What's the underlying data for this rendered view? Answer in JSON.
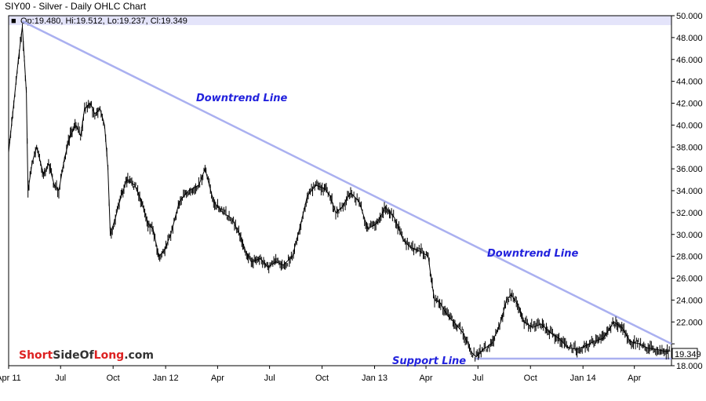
{
  "chart_data": {
    "type": "line",
    "title": "SIY00 - Silver - Daily OHLC Chart",
    "legend": {
      "marker": "■",
      "text": "Op:19.480, Hi:19.512, Lo:19.237, Cl:19.349"
    },
    "last_price_label": "19.349",
    "x_tick_labels": [
      "Apr 11",
      "Jul",
      "Oct",
      "Jan 12",
      "Apr",
      "Jul",
      "Oct",
      "Jan 13",
      "Apr",
      "Jul",
      "Oct",
      "Jan 14",
      "Apr"
    ],
    "y_tick_labels": [
      "18.000",
      "",
      "22.000",
      "24.000",
      "26.000",
      "28.000",
      "30.000",
      "32.000",
      "34.000",
      "36.000",
      "38.000",
      "40.000",
      "42.000",
      "44.000",
      "46.000",
      "48.000",
      "50.000"
    ],
    "ylim": [
      18,
      50
    ],
    "grid": false,
    "annotations": [
      "Downtrend Line",
      "Downtrend Line",
      "Support Line"
    ],
    "trendlines": [
      {
        "name": "Downtrend Line",
        "from": [
          "2011-04-25",
          49.5
        ],
        "to": [
          "2014-06-05",
          20.0
        ]
      },
      {
        "name": "Support Line",
        "from": [
          "2013-06-25",
          18.65
        ],
        "to": [
          "2014-06-05",
          18.65
        ]
      }
    ],
    "series": [
      {
        "x": [
          "2011-04-01",
          "2011-04-10",
          "2011-04-18",
          "2011-04-25",
          "2011-05-02",
          "2011-05-05",
          "2011-05-12",
          "2011-05-20",
          "2011-06-01",
          "2011-06-10",
          "2011-06-20",
          "2011-06-28",
          "2011-07-08",
          "2011-07-18",
          "2011-07-28",
          "2011-08-05",
          "2011-08-12",
          "2011-08-22",
          "2011-08-30",
          "2011-09-08",
          "2011-09-16",
          "2011-09-22",
          "2011-09-26",
          "2011-10-05",
          "2011-10-15",
          "2011-10-25",
          "2011-11-08",
          "2011-11-20",
          "2011-12-01",
          "2011-12-10",
          "2011-12-20",
          "2011-12-29",
          "2012-01-10",
          "2012-01-25",
          "2012-02-10",
          "2012-02-28",
          "2012-03-10",
          "2012-03-25",
          "2012-04-10",
          "2012-04-25",
          "2012-05-10",
          "2012-05-20",
          "2012-05-30",
          "2012-06-15",
          "2012-06-28",
          "2012-07-12",
          "2012-07-25",
          "2012-08-10",
          "2012-08-25",
          "2012-09-05",
          "2012-09-20",
          "2012-10-05",
          "2012-10-15",
          "2012-10-25",
          "2012-11-05",
          "2012-11-20",
          "2012-12-05",
          "2012-12-20",
          "2013-01-05",
          "2013-01-20",
          "2013-02-05",
          "2013-02-20",
          "2013-03-05",
          "2013-03-20",
          "2013-04-05",
          "2013-04-10",
          "2013-04-16",
          "2013-04-25",
          "2013-05-10",
          "2013-05-20",
          "2013-06-05",
          "2013-06-20",
          "2013-06-28",
          "2013-07-10",
          "2013-07-25",
          "2013-08-10",
          "2013-08-20",
          "2013-08-28",
          "2013-09-10",
          "2013-09-20",
          "2013-10-05",
          "2013-10-20",
          "2013-11-05",
          "2013-11-20",
          "2013-12-05",
          "2013-12-20",
          "2014-01-05",
          "2014-01-20",
          "2014-02-05",
          "2014-02-24",
          "2014-03-10",
          "2014-03-25",
          "2014-04-10",
          "2014-04-25",
          "2014-05-10",
          "2014-05-25",
          "2014-06-03"
        ],
        "y": [
          37.5,
          42.0,
          46.0,
          49.0,
          43.0,
          34.0,
          36.5,
          38.0,
          35.5,
          36.5,
          34.5,
          34.0,
          37.0,
          39.0,
          40.0,
          39.0,
          41.5,
          42.0,
          41.0,
          41.5,
          40.0,
          36.0,
          30.0,
          31.5,
          33.5,
          35.0,
          34.5,
          33.0,
          31.0,
          30.5,
          28.0,
          28.5,
          30.0,
          33.0,
          34.0,
          34.5,
          36.0,
          33.0,
          32.0,
          31.5,
          30.0,
          28.5,
          27.5,
          27.8,
          27.0,
          27.5,
          27.2,
          28.0,
          31.0,
          33.5,
          34.5,
          34.2,
          33.5,
          32.0,
          32.5,
          33.8,
          33.0,
          30.5,
          31.0,
          32.5,
          31.5,
          29.5,
          28.8,
          28.5,
          28.0,
          26.0,
          24.0,
          23.8,
          22.5,
          22.0,
          21.0,
          19.2,
          18.8,
          19.5,
          20.0,
          22.0,
          24.0,
          24.5,
          23.5,
          22.0,
          21.5,
          21.8,
          21.0,
          20.5,
          19.7,
          19.5,
          19.8,
          20.2,
          20.5,
          22.0,
          21.5,
          20.2,
          20.0,
          19.6,
          19.5,
          19.3,
          19.35
        ]
      }
    ]
  },
  "branding": {
    "text": "ShortSideOfLong.com",
    "part1": "Short",
    "part2": "SideOf",
    "part3": "Long",
    "part4": ".com"
  },
  "colors": {
    "trendline": "#aab0f0",
    "annotation": "#2222dd",
    "legend_band": "#e4e4fa",
    "price": "#000000",
    "logo_red": "#dd2222",
    "logo_dark": "#333333"
  }
}
